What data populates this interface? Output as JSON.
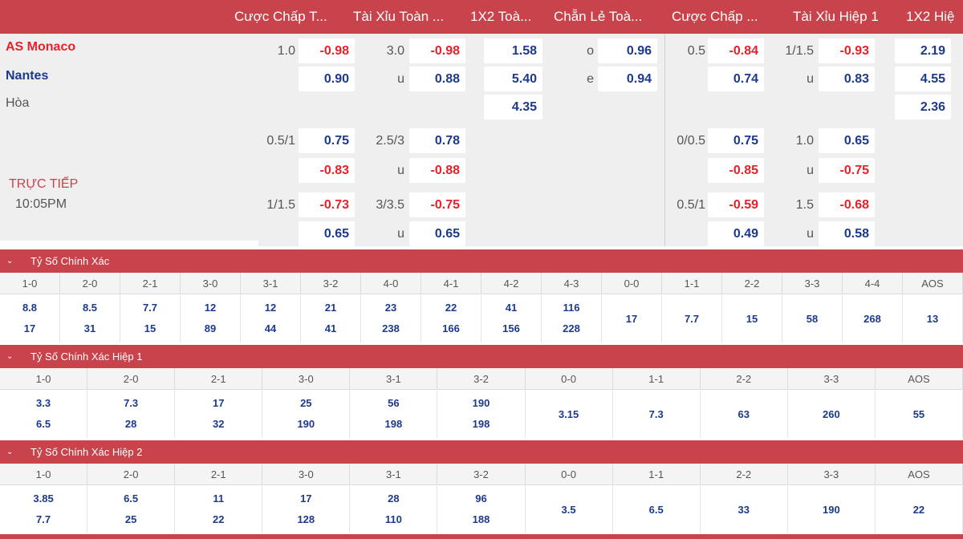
{
  "header_labels": [
    "Cược Chấp T...",
    "Tài Xỉu Toàn ...",
    "1X2 Toà...",
    "Chẵn Lẻ Toà...",
    "Cược Chấp ...",
    "Tài Xỉu Hiệp 1",
    "1X2 Hiệ"
  ],
  "teams": {
    "home": "AS Monaco",
    "away": "Nantes",
    "draw": "Hòa"
  },
  "live": {
    "status": "TRỰC TIẾP",
    "time": "10:05PM"
  },
  "block1": {
    "ah_line": "1.0",
    "ah_home": "-0.98",
    "ah_away": "0.90",
    "ou_line": "3.0",
    "ou_over": "-0.98",
    "ou_u": "u",
    "ou_under": "0.88",
    "x12": [
      "1.58",
      "5.40",
      "4.35"
    ],
    "oe_o": "o",
    "oe_o_val": "0.96",
    "oe_e": "e",
    "oe_e_val": "0.94",
    "h1ah_line": "0.5",
    "h1ah_home": "-0.84",
    "h1ah_away": "0.74",
    "h1ou_line": "1/1.5",
    "h1ou_over": "-0.93",
    "h1ou_u": "u",
    "h1ou_under": "0.83",
    "h1x12": [
      "2.19",
      "4.55",
      "2.36"
    ]
  },
  "block2": {
    "ah_line": "0.5/1",
    "ah_home": "0.75",
    "ah_away": "-0.83",
    "ou_line": "2.5/3",
    "ou_over": "0.78",
    "ou_u": "u",
    "ou_under": "-0.88",
    "h1ah_line": "0/0.5",
    "h1ah_home": "0.75",
    "h1ah_away": "-0.85",
    "h1ou_line": "1.0",
    "h1ou_over": "0.65",
    "h1ou_u": "u",
    "h1ou_under": "-0.75"
  },
  "block3": {
    "ah_line": "1/1.5",
    "ah_home": "-0.73",
    "ah_away": "0.65",
    "ou_line": "3/3.5",
    "ou_over": "-0.75",
    "ou_u": "u",
    "ou_under": "0.65",
    "h1ah_line": "0.5/1",
    "h1ah_home": "-0.59",
    "h1ah_away": "0.49",
    "h1ou_line": "1.5",
    "h1ou_over": "-0.68",
    "h1ou_u": "u",
    "h1ou_under": "0.58"
  },
  "icons": {
    "collapse": "chevron-down-icon"
  },
  "colors": {
    "accent": "#c8434b",
    "negative": "#e8202a",
    "positive": "#1c3a8a"
  },
  "cs_full": {
    "title": "Tỷ Số Chính Xác",
    "headers": [
      "1-0",
      "2-0",
      "2-1",
      "3-0",
      "3-1",
      "3-2",
      "4-0",
      "4-1",
      "4-2",
      "4-3",
      "0-0",
      "1-1",
      "2-2",
      "3-3",
      "4-4",
      "AOS"
    ],
    "top": [
      "8.8",
      "8.5",
      "7.7",
      "12",
      "12",
      "21",
      "23",
      "22",
      "41",
      "116",
      "17",
      "7.7",
      "15",
      "58",
      "268",
      "13"
    ],
    "bottom": [
      "17",
      "31",
      "15",
      "89",
      "44",
      "41",
      "238",
      "166",
      "156",
      "228",
      "",
      "",
      "",
      "",
      "",
      ""
    ]
  },
  "cs_h1": {
    "title": "Tỷ Số Chính Xác Hiệp 1",
    "headers": [
      "1-0",
      "2-0",
      "2-1",
      "3-0",
      "3-1",
      "3-2",
      "0-0",
      "1-1",
      "2-2",
      "3-3",
      "AOS"
    ],
    "top": [
      "3.3",
      "7.3",
      "17",
      "25",
      "56",
      "190",
      "3.15",
      "7.3",
      "63",
      "260",
      "55"
    ],
    "bottom": [
      "6.5",
      "28",
      "32",
      "190",
      "198",
      "198",
      "",
      "",
      "",
      "",
      ""
    ]
  },
  "cs_h2": {
    "title": "Tỷ Số Chính Xác Hiệp 2",
    "headers": [
      "1-0",
      "2-0",
      "2-1",
      "3-0",
      "3-1",
      "3-2",
      "0-0",
      "1-1",
      "2-2",
      "3-3",
      "AOS"
    ],
    "top": [
      "3.85",
      "6.5",
      "11",
      "17",
      "28",
      "96",
      "3.5",
      "6.5",
      "33",
      "190",
      "22"
    ],
    "bottom": [
      "7.7",
      "25",
      "22",
      "128",
      "110",
      "188",
      "",
      "",
      "",
      "",
      ""
    ]
  }
}
